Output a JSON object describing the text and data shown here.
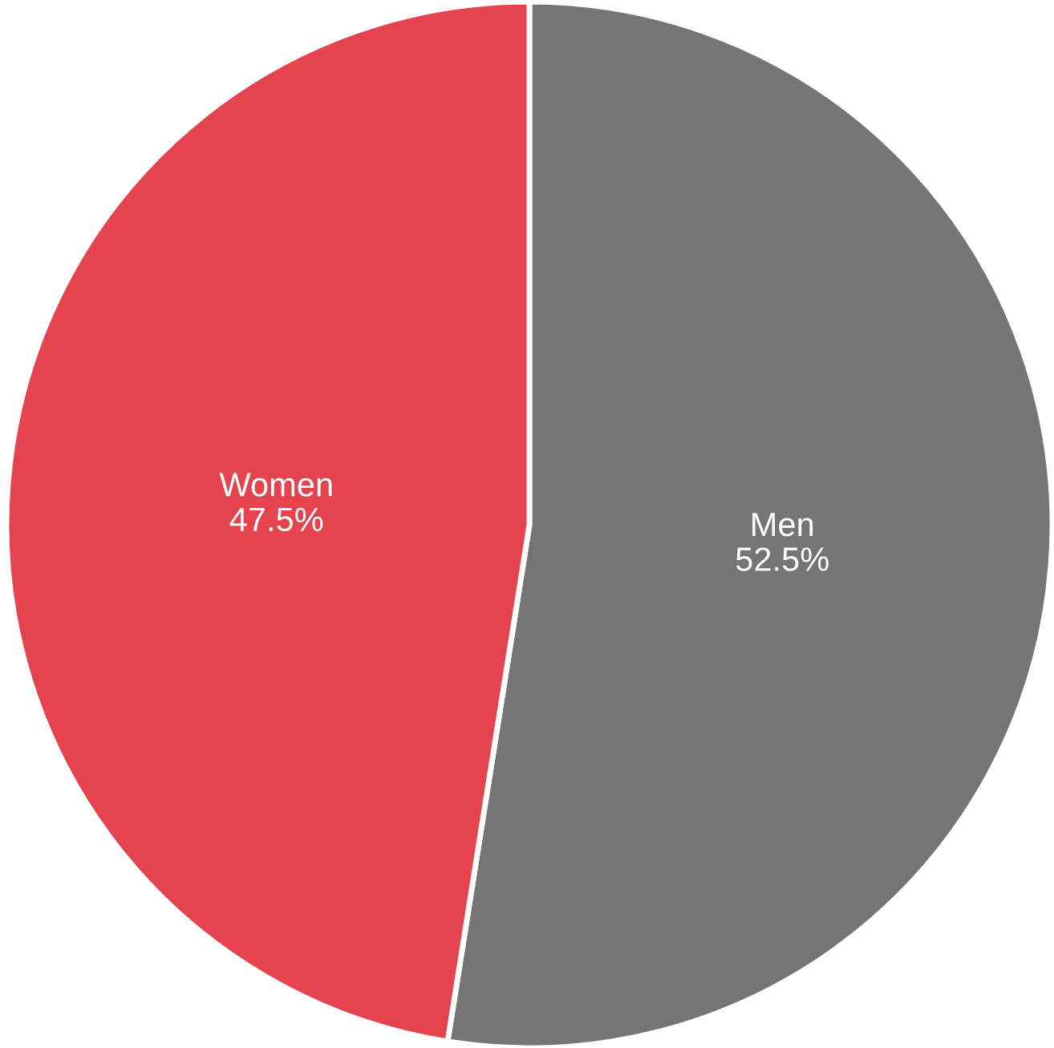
{
  "chart_data": {
    "type": "pie",
    "categories": [
      "Men",
      "Women"
    ],
    "values": [
      52.5,
      47.5
    ],
    "colors": [
      "#757575",
      "#e5444f"
    ],
    "value_labels": [
      "52.5%",
      "47.5%"
    ],
    "legend": false
  }
}
